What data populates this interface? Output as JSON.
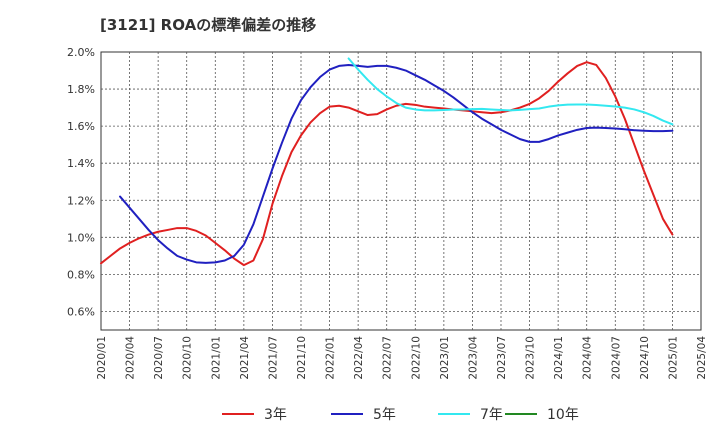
{
  "chart_data": {
    "type": "line",
    "title": "[3121]  ROAの標準偏差の推移",
    "x_ticks": [
      "2020/01",
      "2020/04",
      "2020/07",
      "2020/10",
      "2021/01",
      "2021/04",
      "2021/07",
      "2021/10",
      "2022/01",
      "2022/04",
      "2022/07",
      "2022/10",
      "2023/01",
      "2023/04",
      "2023/07",
      "2023/10",
      "2024/01",
      "2024/04",
      "2024/07",
      "2024/10",
      "2025/01",
      "2025/04"
    ],
    "y_ticks": [
      "0.6%",
      "0.8%",
      "1.0%",
      "1.2%",
      "1.4%",
      "1.6%",
      "1.8%",
      "2.0%"
    ],
    "ylim": [
      0.5,
      2.0
    ],
    "xlim": [
      "2020/01",
      "2025/04"
    ],
    "grid": true,
    "legend_position": "bottom",
    "series": [
      {
        "name": "3年",
        "color": "#e02020",
        "points": [
          [
            "2020/01",
            0.86
          ],
          [
            "2020/02",
            0.9
          ],
          [
            "2020/03",
            0.94
          ],
          [
            "2020/04",
            0.97
          ],
          [
            "2020/05",
            0.995
          ],
          [
            "2020/06",
            1.015
          ],
          [
            "2020/07",
            1.03
          ],
          [
            "2020/08",
            1.04
          ],
          [
            "2020/09",
            1.05
          ],
          [
            "2020/10",
            1.05
          ],
          [
            "2020/11",
            1.035
          ],
          [
            "2020/12",
            1.01
          ],
          [
            "2021/01",
            0.97
          ],
          [
            "2021/02",
            0.93
          ],
          [
            "2021/03",
            0.885
          ],
          [
            "2021/04",
            0.85
          ],
          [
            "2021/05",
            0.875
          ],
          [
            "2021/06",
            0.99
          ],
          [
            "2021/07",
            1.18
          ],
          [
            "2021/08",
            1.33
          ],
          [
            "2021/09",
            1.46
          ],
          [
            "2021/10",
            1.55
          ],
          [
            "2021/11",
            1.62
          ],
          [
            "2021/12",
            1.67
          ],
          [
            "2022/01",
            1.705
          ],
          [
            "2022/02",
            1.71
          ],
          [
            "2022/03",
            1.7
          ],
          [
            "2022/04",
            1.68
          ],
          [
            "2022/05",
            1.66
          ],
          [
            "2022/06",
            1.665
          ],
          [
            "2022/07",
            1.69
          ],
          [
            "2022/08",
            1.71
          ],
          [
            "2022/09",
            1.72
          ],
          [
            "2022/10",
            1.715
          ],
          [
            "2022/11",
            1.705
          ],
          [
            "2022/12",
            1.7
          ],
          [
            "2023/01",
            1.695
          ],
          [
            "2023/02",
            1.69
          ],
          [
            "2023/03",
            1.685
          ],
          [
            "2023/04",
            1.68
          ],
          [
            "2023/05",
            1.675
          ],
          [
            "2023/06",
            1.67
          ],
          [
            "2023/07",
            1.675
          ],
          [
            "2023/08",
            1.685
          ],
          [
            "2023/09",
            1.7
          ],
          [
            "2023/10",
            1.72
          ],
          [
            "2023/11",
            1.75
          ],
          [
            "2023/12",
            1.79
          ],
          [
            "2024/01",
            1.84
          ],
          [
            "2024/02",
            1.885
          ],
          [
            "2024/03",
            1.925
          ],
          [
            "2024/04",
            1.945
          ],
          [
            "2024/05",
            1.93
          ],
          [
            "2024/06",
            1.86
          ],
          [
            "2024/07",
            1.76
          ],
          [
            "2024/08",
            1.64
          ],
          [
            "2024/09",
            1.5
          ],
          [
            "2024/10",
            1.36
          ],
          [
            "2024/11",
            1.23
          ],
          [
            "2024/12",
            1.1
          ],
          [
            "2025/01",
            1.015
          ]
        ]
      },
      {
        "name": "5年",
        "color": "#2020c0",
        "points": [
          [
            "2020/03",
            1.22
          ],
          [
            "2020/04",
            1.16
          ],
          [
            "2020/05",
            1.1
          ],
          [
            "2020/06",
            1.04
          ],
          [
            "2020/07",
            0.985
          ],
          [
            "2020/08",
            0.94
          ],
          [
            "2020/09",
            0.9
          ],
          [
            "2020/10",
            0.88
          ],
          [
            "2020/11",
            0.865
          ],
          [
            "2020/12",
            0.862
          ],
          [
            "2021/01",
            0.865
          ],
          [
            "2021/02",
            0.875
          ],
          [
            "2021/03",
            0.9
          ],
          [
            "2021/04",
            0.96
          ],
          [
            "2021/05",
            1.07
          ],
          [
            "2021/06",
            1.22
          ],
          [
            "2021/07",
            1.37
          ],
          [
            "2021/08",
            1.51
          ],
          [
            "2021/09",
            1.64
          ],
          [
            "2021/10",
            1.74
          ],
          [
            "2021/11",
            1.81
          ],
          [
            "2021/12",
            1.865
          ],
          [
            "2022/01",
            1.905
          ],
          [
            "2022/02",
            1.925
          ],
          [
            "2022/03",
            1.93
          ],
          [
            "2022/04",
            1.925
          ],
          [
            "2022/05",
            1.92
          ],
          [
            "2022/06",
            1.925
          ],
          [
            "2022/07",
            1.925
          ],
          [
            "2022/08",
            1.915
          ],
          [
            "2022/09",
            1.9
          ],
          [
            "2022/10",
            1.875
          ],
          [
            "2022/11",
            1.85
          ],
          [
            "2022/12",
            1.82
          ],
          [
            "2023/01",
            1.79
          ],
          [
            "2023/02",
            1.755
          ],
          [
            "2023/03",
            1.715
          ],
          [
            "2023/04",
            1.675
          ],
          [
            "2023/05",
            1.64
          ],
          [
            "2023/06",
            1.61
          ],
          [
            "2023/07",
            1.58
          ],
          [
            "2023/08",
            1.555
          ],
          [
            "2023/09",
            1.53
          ],
          [
            "2023/10",
            1.515
          ],
          [
            "2023/11",
            1.515
          ],
          [
            "2023/12",
            1.53
          ],
          [
            "2024/01",
            1.55
          ],
          [
            "2024/02",
            1.565
          ],
          [
            "2024/03",
            1.58
          ],
          [
            "2024/04",
            1.59
          ],
          [
            "2024/05",
            1.592
          ],
          [
            "2024/06",
            1.59
          ],
          [
            "2024/07",
            1.587
          ],
          [
            "2024/08",
            1.583
          ],
          [
            "2024/09",
            1.578
          ],
          [
            "2024/10",
            1.575
          ],
          [
            "2024/11",
            1.573
          ],
          [
            "2024/12",
            1.573
          ],
          [
            "2025/01",
            1.575
          ]
        ]
      },
      {
        "name": "7年",
        "color": "#33e8f0",
        "points": [
          [
            "2022/03",
            1.965
          ],
          [
            "2022/04",
            1.905
          ],
          [
            "2022/05",
            1.85
          ],
          [
            "2022/06",
            1.8
          ],
          [
            "2022/07",
            1.76
          ],
          [
            "2022/08",
            1.725
          ],
          [
            "2022/09",
            1.7
          ],
          [
            "2022/10",
            1.69
          ],
          [
            "2022/11",
            1.685
          ],
          [
            "2022/12",
            1.685
          ],
          [
            "2023/01",
            1.687
          ],
          [
            "2023/02",
            1.69
          ],
          [
            "2023/03",
            1.69
          ],
          [
            "2023/04",
            1.692
          ],
          [
            "2023/05",
            1.693
          ],
          [
            "2023/06",
            1.69
          ],
          [
            "2023/07",
            1.687
          ],
          [
            "2023/08",
            1.685
          ],
          [
            "2023/09",
            1.688
          ],
          [
            "2023/10",
            1.692
          ],
          [
            "2023/11",
            1.695
          ],
          [
            "2023/12",
            1.705
          ],
          [
            "2024/01",
            1.712
          ],
          [
            "2024/02",
            1.716
          ],
          [
            "2024/03",
            1.717
          ],
          [
            "2024/04",
            1.717
          ],
          [
            "2024/05",
            1.714
          ],
          [
            "2024/06",
            1.71
          ],
          [
            "2024/07",
            1.706
          ],
          [
            "2024/08",
            1.7
          ],
          [
            "2024/09",
            1.69
          ],
          [
            "2024/10",
            1.675
          ],
          [
            "2024/11",
            1.655
          ],
          [
            "2024/12",
            1.63
          ],
          [
            "2025/01",
            1.61
          ]
        ]
      },
      {
        "name": "10年",
        "color": "#228822",
        "points": []
      }
    ]
  }
}
